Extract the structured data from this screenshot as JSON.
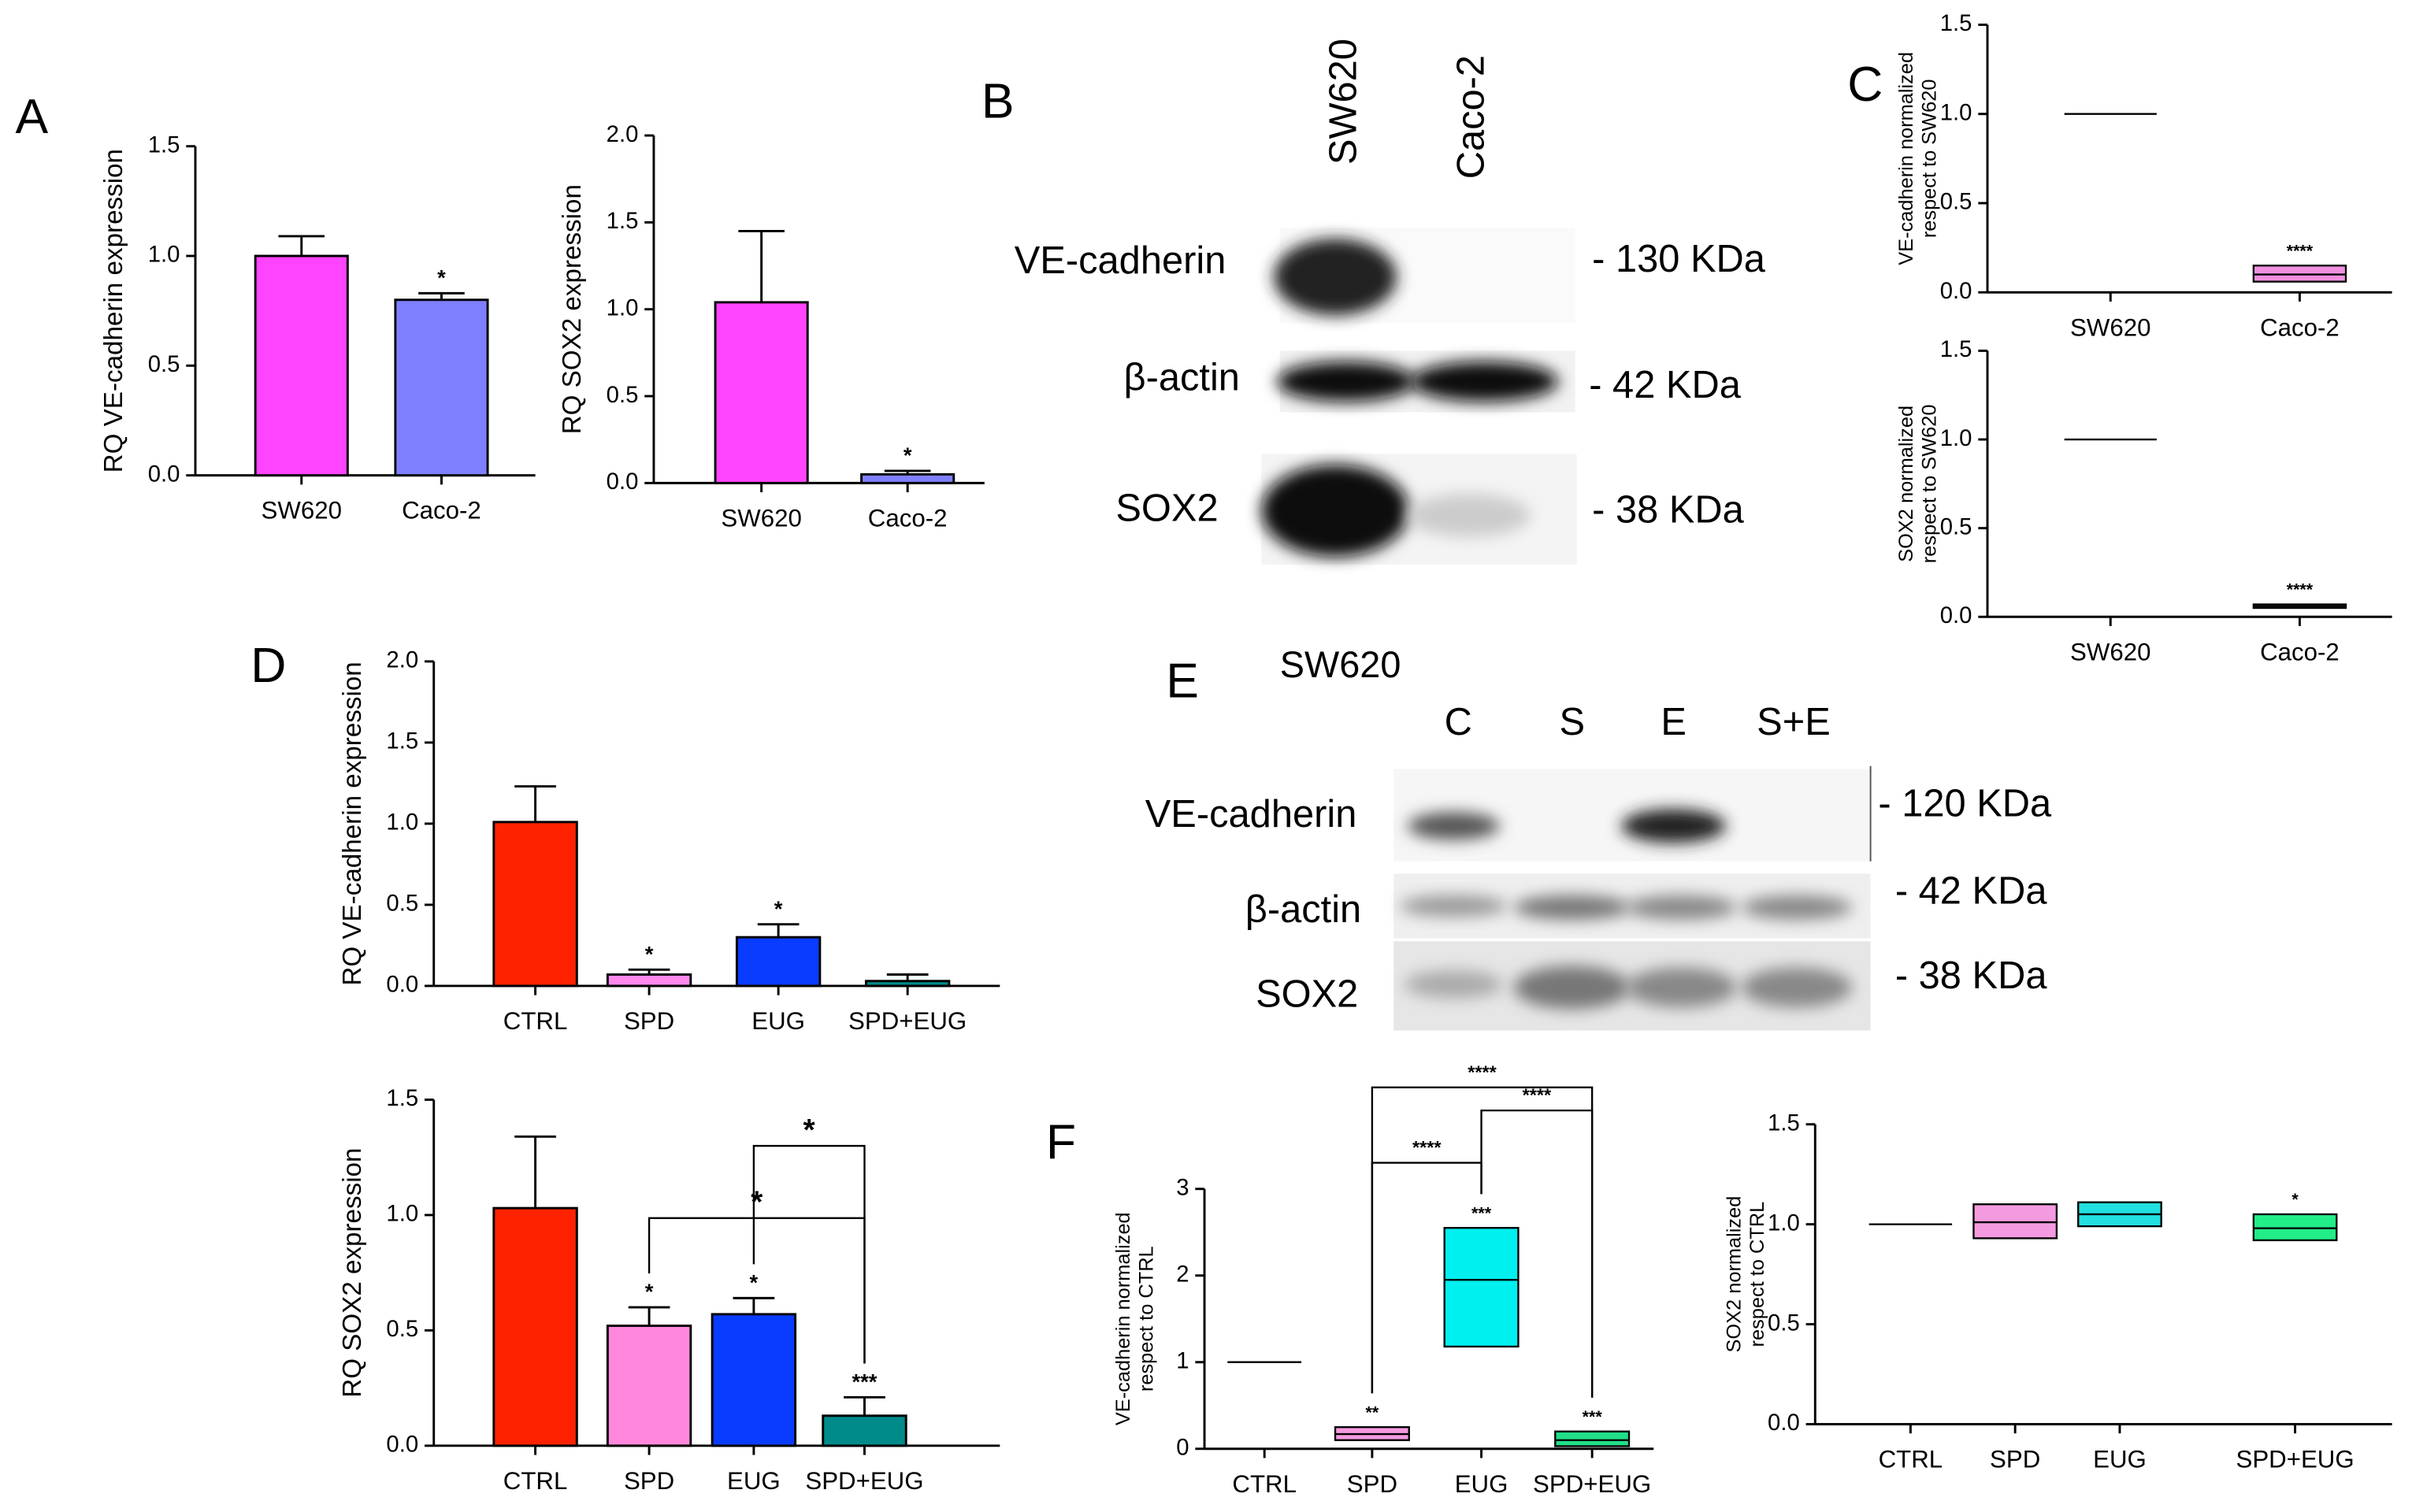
{
  "panel_letters": [
    "A",
    "B",
    "C",
    "D",
    "E",
    "F"
  ],
  "chart_data": [
    {
      "type": "bar",
      "ylabel": [
        "RQ VE-cadherin expression"
      ],
      "categories": [
        "SW620",
        "Caco-2"
      ],
      "values": [
        1.0,
        0.8
      ],
      "errors": [
        0.09,
        0.03
      ],
      "colors": [
        "#ff44ff",
        "#7f80ff"
      ],
      "significance": [
        null,
        "*"
      ],
      "ylim": [
        0,
        1.5
      ],
      "yticks": [
        {
          "value": 0,
          "label": "0.0"
        },
        0.5,
        {
          "value": 1,
          "label": "1.0"
        },
        1.5
      ]
    },
    {
      "type": "bar",
      "ylabel": [
        "RQ SOX2 expression"
      ],
      "categories": [
        "SW620",
        "Caco-2"
      ],
      "values": [
        1.04,
        0.05
      ],
      "errors": [
        0.41,
        0.02
      ],
      "colors": [
        "#ff44ff",
        "#7f80ff"
      ],
      "significance": [
        null,
        "*"
      ],
      "ylim": [
        0,
        2
      ],
      "yticks": [
        {
          "value": 0,
          "label": "0.0"
        },
        0.5,
        {
          "value": 1,
          "label": "1.0"
        },
        1.5,
        {
          "value": 2,
          "label": "2.0"
        }
      ]
    },
    {
      "type": "box",
      "ylabel": [
        "VE-cadherin normalized",
        "respect to SW620"
      ],
      "categories": [
        "SW620",
        "Caco-2"
      ],
      "low": [
        1,
        0.06
      ],
      "median": [
        1,
        0.1
      ],
      "high": [
        1,
        0.15
      ],
      "colors": [
        "#000000",
        "#f090e0"
      ],
      "significance": [
        null,
        "****"
      ],
      "ylim": [
        0,
        1.5
      ],
      "yticks": [
        {
          "value": 0,
          "label": "0.0"
        },
        0.5,
        {
          "value": 1,
          "label": "1.0"
        },
        1.5
      ]
    },
    {
      "type": "box",
      "ylabel": [
        "SOX2 normalized",
        "respect to SW620"
      ],
      "categories": [
        "SW620",
        "Caco-2"
      ],
      "low": [
        1,
        0.05
      ],
      "median": [
        1,
        0.06
      ],
      "high": [
        1,
        0.07
      ],
      "colors": [
        "#000000",
        "#f090e0"
      ],
      "significance": [
        null,
        "****"
      ],
      "ylim": [
        0,
        1.5
      ],
      "yticks": [
        {
          "value": 0,
          "label": "0.0"
        },
        0.5,
        {
          "value": 1,
          "label": "1.0"
        },
        1.5
      ]
    },
    {
      "type": "bar",
      "ylabel": [
        "RQ VE-cadherin expression"
      ],
      "categories": [
        "CTRL",
        "SPD",
        "EUG",
        "SPD+EUG"
      ],
      "values": [
        1.01,
        0.07,
        0.3,
        0.03
      ],
      "errors": [
        0.22,
        0.03,
        0.08,
        0.04
      ],
      "colors": [
        "#ff2200",
        "#ff88ee",
        "#0a3cff",
        "#008b8b"
      ],
      "significance": [
        null,
        "*",
        "*",
        null
      ],
      "ylim": [
        0,
        2
      ],
      "yticks": [
        {
          "value": 0,
          "label": "0.0"
        },
        0.5,
        {
          "value": 1,
          "label": "1.0"
        },
        1.5,
        {
          "value": 2,
          "label": "2.0"
        }
      ]
    },
    {
      "type": "bar",
      "ylabel": [
        "RQ SOX2 expression"
      ],
      "categories": [
        "CTRL",
        "SPD",
        "EUG",
        "SPD+EUG"
      ],
      "values": [
        1.03,
        0.52,
        0.57,
        0.13
      ],
      "errors": [
        0.31,
        0.08,
        0.07,
        0.08
      ],
      "colors": [
        "#ff2200",
        "#ff88dd",
        "#0a3cff",
        "#008b8b"
      ],
      "significance": [
        null,
        "*",
        "*",
        "***"
      ],
      "comparisons": [
        {
          "from": 1,
          "to": 3,
          "label": "*"
        },
        {
          "from": 2,
          "to": 3,
          "label": "*"
        }
      ],
      "ylim": [
        0,
        1.5
      ],
      "yticks": [
        {
          "value": 0,
          "label": "0.0"
        },
        0.5,
        {
          "value": 1,
          "label": "1.0"
        },
        1.5
      ]
    },
    {
      "type": "box",
      "ylabel": [
        "VE-cadherin normalized",
        "respect to CTRL"
      ],
      "categories": [
        "CTRL",
        "SPD",
        "EUG",
        "SPD+EUG"
      ],
      "low": [
        1,
        0.1,
        1.18,
        0.03
      ],
      "median": [
        1,
        0.17,
        1.95,
        0.1
      ],
      "high": [
        1,
        0.25,
        2.55,
        0.2
      ],
      "colors": [
        "#000000",
        "#f49ae0",
        "#00f0f0",
        "#22dd88"
      ],
      "significance": [
        null,
        "**",
        "***",
        "***"
      ],
      "comparisons": [
        {
          "from": 1,
          "to": 2,
          "label": "****"
        },
        {
          "from": 2,
          "to": 3,
          "label": "****"
        },
        {
          "from": 1,
          "to": 3,
          "label": "****"
        }
      ],
      "ylim": [
        0,
        3
      ],
      "yticks": [
        0,
        1,
        2,
        3
      ]
    },
    {
      "type": "box",
      "ylabel": [
        "SOX2 normalized",
        "respect to CTRL"
      ],
      "categories": [
        "CTRL",
        "SPD",
        "EUG",
        "SPD+EUG"
      ],
      "low": [
        1,
        0.93,
        0.99,
        0.92
      ],
      "median": [
        1,
        1.01,
        1.05,
        0.98
      ],
      "high": [
        1,
        1.1,
        1.11,
        1.05
      ],
      "colors": [
        "#000000",
        "#f49ae0",
        "#22e0e0",
        "#22ee88"
      ],
      "significance": [
        null,
        null,
        null,
        "*"
      ],
      "ylim": [
        0,
        1.5
      ],
      "yticks": [
        {
          "value": 0,
          "label": "0.0"
        },
        0.5,
        {
          "value": 1,
          "label": "1.0"
        },
        1.5
      ]
    }
  ],
  "blots": [
    {
      "lanes": [
        "SW620",
        "Caco-2"
      ],
      "rows": [
        {
          "label": "VE-cadherin",
          "size": "- 130 KDa"
        },
        {
          "label": "β-actin",
          "size": "- 42 KDa"
        },
        {
          "label": "SOX2",
          "size": "- 38 KDa"
        }
      ]
    },
    {
      "title": "SW620",
      "lanes": [
        "C",
        "S",
        "E",
        "S+E"
      ],
      "rows": [
        {
          "label": "VE-cadherin",
          "size": "- 120 KDa"
        },
        {
          "label": "β-actin",
          "size": "- 42 KDa"
        },
        {
          "label": "SOX2",
          "size": "- 38 KDa"
        }
      ]
    }
  ]
}
